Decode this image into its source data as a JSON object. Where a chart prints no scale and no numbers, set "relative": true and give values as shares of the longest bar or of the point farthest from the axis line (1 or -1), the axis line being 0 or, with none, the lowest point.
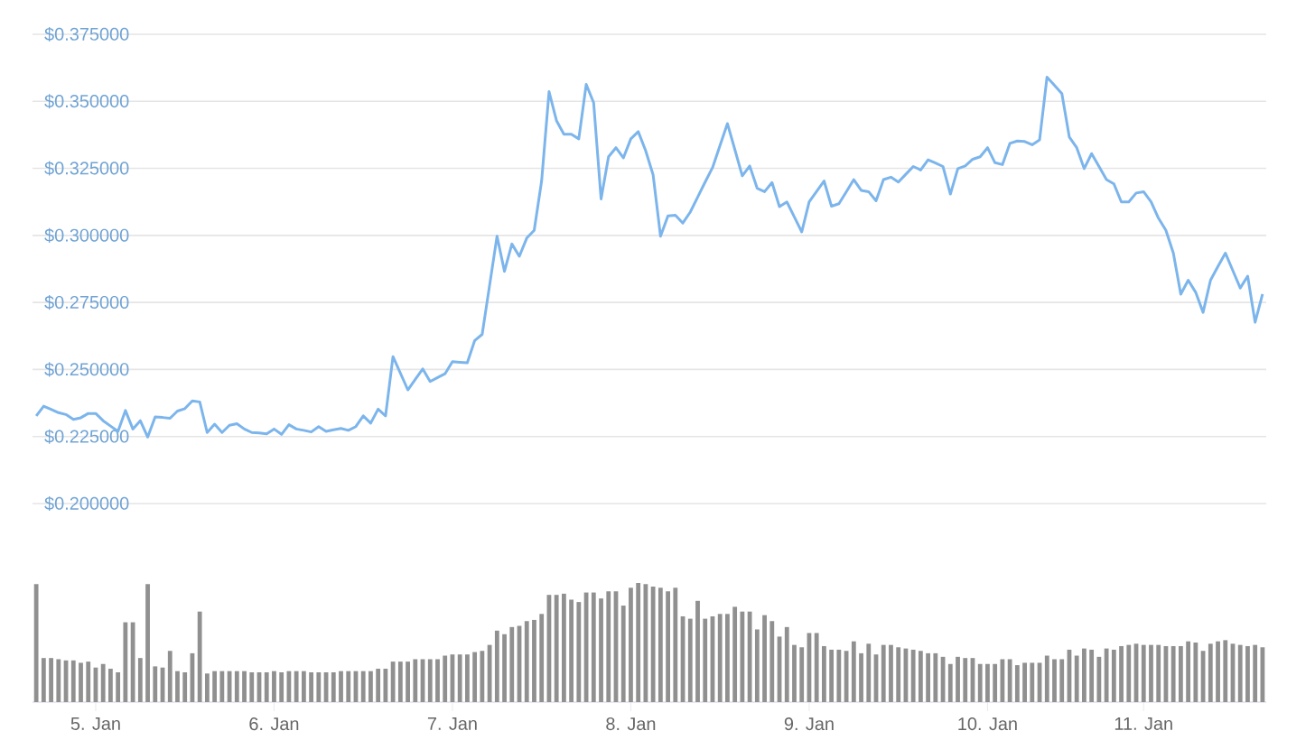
{
  "chart_data": [
    {
      "type": "line",
      "color": "#7cb5ec",
      "grid": "y",
      "tick_labels": "y",
      "ylim": [
        0.2,
        0.375
      ],
      "yticks": [
        {
          "value": 0.2,
          "label": "$0.200000"
        },
        {
          "value": 0.225,
          "label": "$0.225000"
        },
        {
          "value": 0.25,
          "label": "$0.250000"
        },
        {
          "value": 0.275,
          "label": "$0.275000"
        },
        {
          "value": 0.3,
          "label": "$0.300000"
        },
        {
          "value": 0.325,
          "label": "$0.325000"
        },
        {
          "value": 0.35,
          "label": "$0.350000"
        },
        {
          "value": 0.375,
          "label": "$0.375000"
        }
      ],
      "categories": [
        null,
        null,
        null,
        null,
        null,
        null,
        null,
        null,
        null,
        null,
        null,
        null,
        null,
        null,
        null,
        null,
        null,
        null,
        null,
        null,
        null,
        null,
        null,
        null,
        null,
        null,
        null,
        null,
        null,
        null,
        null,
        null,
        null,
        null,
        null,
        null,
        null,
        null,
        null,
        null,
        null,
        null,
        null,
        null,
        null,
        null,
        null,
        null,
        null,
        null,
        null,
        null,
        null,
        null,
        null,
        null,
        null,
        null,
        null,
        null,
        null,
        null,
        null,
        null,
        null,
        null,
        null,
        null,
        null,
        null,
        null,
        null,
        null,
        null,
        null,
        null,
        null,
        null,
        null,
        null,
        null,
        null,
        null,
        null,
        null,
        null,
        null,
        null,
        null,
        null,
        null,
        null,
        null,
        null,
        null,
        null,
        null,
        null,
        null,
        null,
        null,
        null,
        null,
        null,
        null,
        null,
        null,
        null,
        null,
        null,
        null,
        null,
        null,
        null,
        null,
        null,
        null,
        null,
        null,
        null,
        null,
        null,
        null,
        null,
        null,
        null,
        null,
        null,
        null,
        null,
        null,
        null,
        null,
        null,
        null,
        null,
        null,
        null,
        null,
        null,
        null,
        null,
        null,
        null,
        null,
        null,
        null,
        null,
        null,
        null,
        null,
        null,
        null,
        null,
        null,
        null,
        null,
        null,
        null,
        null,
        null,
        null,
        null,
        null,
        null,
        null
      ],
      "values": [
        0.2327,
        0.2363,
        0.2351,
        0.2339,
        0.2332,
        0.2314,
        0.232,
        0.2336,
        0.2336,
        0.2309,
        0.2289,
        0.2269,
        0.2347,
        0.2278,
        0.2309,
        0.2248,
        0.2323,
        0.2321,
        0.2318,
        0.2345,
        0.2354,
        0.2383,
        0.2379,
        0.2265,
        0.2296,
        0.2265,
        0.2292,
        0.2298,
        0.2278,
        0.2265,
        0.2263,
        0.226,
        0.2278,
        0.2258,
        0.2294,
        0.2278,
        0.2273,
        0.2267,
        0.2287,
        0.2269,
        0.2275,
        0.228,
        0.2273,
        0.2287,
        0.2327,
        0.23,
        0.2352,
        0.2327,
        0.2548,
        0.2486,
        0.2424,
        0.2463,
        0.2502,
        0.2455,
        0.247,
        0.2484,
        0.2529,
        0.2527,
        0.2525,
        0.2608,
        0.2631,
        0.2814,
        0.2997,
        0.2866,
        0.2968,
        0.2922,
        0.299,
        0.3019,
        0.3203,
        0.3536,
        0.3428,
        0.3377,
        0.3377,
        0.336,
        0.3563,
        0.3495,
        0.3136,
        0.3293,
        0.3327,
        0.3289,
        0.336,
        0.3387,
        0.3316,
        0.3226,
        0.2997,
        0.3073,
        0.3075,
        0.3046,
        0.3087,
        0.3143,
        0.3199,
        0.3253,
        0.3335,
        0.3417,
        0.332,
        0.3222,
        0.3259,
        0.3176,
        0.3163,
        0.3197,
        0.3107,
        0.3125,
        0.3069,
        0.3013,
        0.3125,
        0.3164,
        0.3203,
        0.3109,
        0.3118,
        0.3163,
        0.3208,
        0.3168,
        0.3163,
        0.3129,
        0.3208,
        0.3217,
        0.3199,
        0.3228,
        0.3257,
        0.3244,
        0.3282,
        0.327,
        0.3257,
        0.3154,
        0.3249,
        0.3259,
        0.3284,
        0.3293,
        0.3327,
        0.3271,
        0.3264,
        0.3343,
        0.3352,
        0.335,
        0.3338,
        0.3356,
        0.359,
        0.356,
        0.3529,
        0.3367,
        0.3327,
        0.3249,
        0.3305,
        0.3257,
        0.3208,
        0.3192,
        0.3125,
        0.3125,
        0.3158,
        0.3163,
        0.3125,
        0.3064,
        0.3019,
        0.2934,
        0.2781,
        0.2833,
        0.2788,
        0.2713,
        0.2833,
        0.2884,
        0.2934,
        0.2869,
        0.2804,
        0.2848,
        0.2676,
        0.2781
      ]
    },
    {
      "type": "bar",
      "relative": true,
      "color": "#909090",
      "categories": [
        null,
        null,
        null,
        null,
        null,
        null,
        null,
        null,
        "5. Jan",
        null,
        null,
        null,
        null,
        null,
        null,
        null,
        null,
        null,
        null,
        null,
        null,
        null,
        null,
        null,
        null,
        null,
        null,
        null,
        null,
        null,
        null,
        null,
        "6. Jan",
        null,
        null,
        null,
        null,
        null,
        null,
        null,
        null,
        null,
        null,
        null,
        null,
        null,
        null,
        null,
        null,
        null,
        null,
        null,
        null,
        null,
        null,
        null,
        "7. Jan",
        null,
        null,
        null,
        null,
        null,
        null,
        null,
        null,
        null,
        null,
        null,
        null,
        null,
        null,
        null,
        null,
        null,
        null,
        null,
        null,
        null,
        null,
        null,
        "8. Jan",
        null,
        null,
        null,
        null,
        null,
        null,
        null,
        null,
        null,
        null,
        null,
        null,
        null,
        null,
        null,
        null,
        null,
        null,
        null,
        null,
        null,
        null,
        null,
        "9. Jan",
        null,
        null,
        null,
        null,
        null,
        null,
        null,
        null,
        null,
        null,
        null,
        null,
        null,
        null,
        null,
        null,
        null,
        null,
        null,
        null,
        null,
        null,
        null,
        "10. Jan",
        null,
        null,
        null,
        null,
        null,
        null,
        null,
        null,
        null,
        null,
        null,
        null,
        null,
        null,
        null,
        null,
        null,
        null,
        null,
        null,
        "11. Jan",
        null,
        null,
        null,
        null,
        null,
        null,
        null,
        null,
        null,
        null,
        null,
        null,
        null,
        null,
        null,
        null
      ],
      "values": [
        0.99,
        0.37,
        0.37,
        0.36,
        0.35,
        0.35,
        0.33,
        0.34,
        0.29,
        0.32,
        0.28,
        0.25,
        0.67,
        0.67,
        0.37,
        0.99,
        0.3,
        0.29,
        0.43,
        0.26,
        0.25,
        0.41,
        0.76,
        0.24,
        0.26,
        0.26,
        0.26,
        0.26,
        0.26,
        0.25,
        0.25,
        0.25,
        0.26,
        0.25,
        0.26,
        0.26,
        0.26,
        0.25,
        0.25,
        0.25,
        0.25,
        0.26,
        0.26,
        0.26,
        0.26,
        0.26,
        0.28,
        0.28,
        0.34,
        0.34,
        0.34,
        0.36,
        0.36,
        0.36,
        0.36,
        0.39,
        0.4,
        0.4,
        0.4,
        0.42,
        0.43,
        0.48,
        0.6,
        0.57,
        0.63,
        0.64,
        0.68,
        0.69,
        0.74,
        0.9,
        0.9,
        0.91,
        0.86,
        0.84,
        0.92,
        0.92,
        0.87,
        0.93,
        0.93,
        0.81,
        0.96,
        1.0,
        0.99,
        0.97,
        0.96,
        0.93,
        0.96,
        0.72,
        0.7,
        0.85,
        0.7,
        0.72,
        0.74,
        0.74,
        0.8,
        0.76,
        0.76,
        0.61,
        0.73,
        0.68,
        0.55,
        0.63,
        0.48,
        0.46,
        0.58,
        0.58,
        0.47,
        0.44,
        0.44,
        0.43,
        0.51,
        0.41,
        0.49,
        0.4,
        0.48,
        0.48,
        0.46,
        0.45,
        0.44,
        0.43,
        0.41,
        0.41,
        0.38,
        0.32,
        0.38,
        0.37,
        0.37,
        0.32,
        0.32,
        0.32,
        0.36,
        0.36,
        0.31,
        0.33,
        0.33,
        0.33,
        0.39,
        0.36,
        0.36,
        0.44,
        0.39,
        0.45,
        0.44,
        0.38,
        0.45,
        0.44,
        0.47,
        0.48,
        0.49,
        0.48,
        0.48,
        0.48,
        0.47,
        0.47,
        0.47,
        0.51,
        0.5,
        0.43,
        0.49,
        0.51,
        0.52,
        0.49,
        0.48,
        0.47,
        0.48,
        0.46
      ]
    }
  ]
}
